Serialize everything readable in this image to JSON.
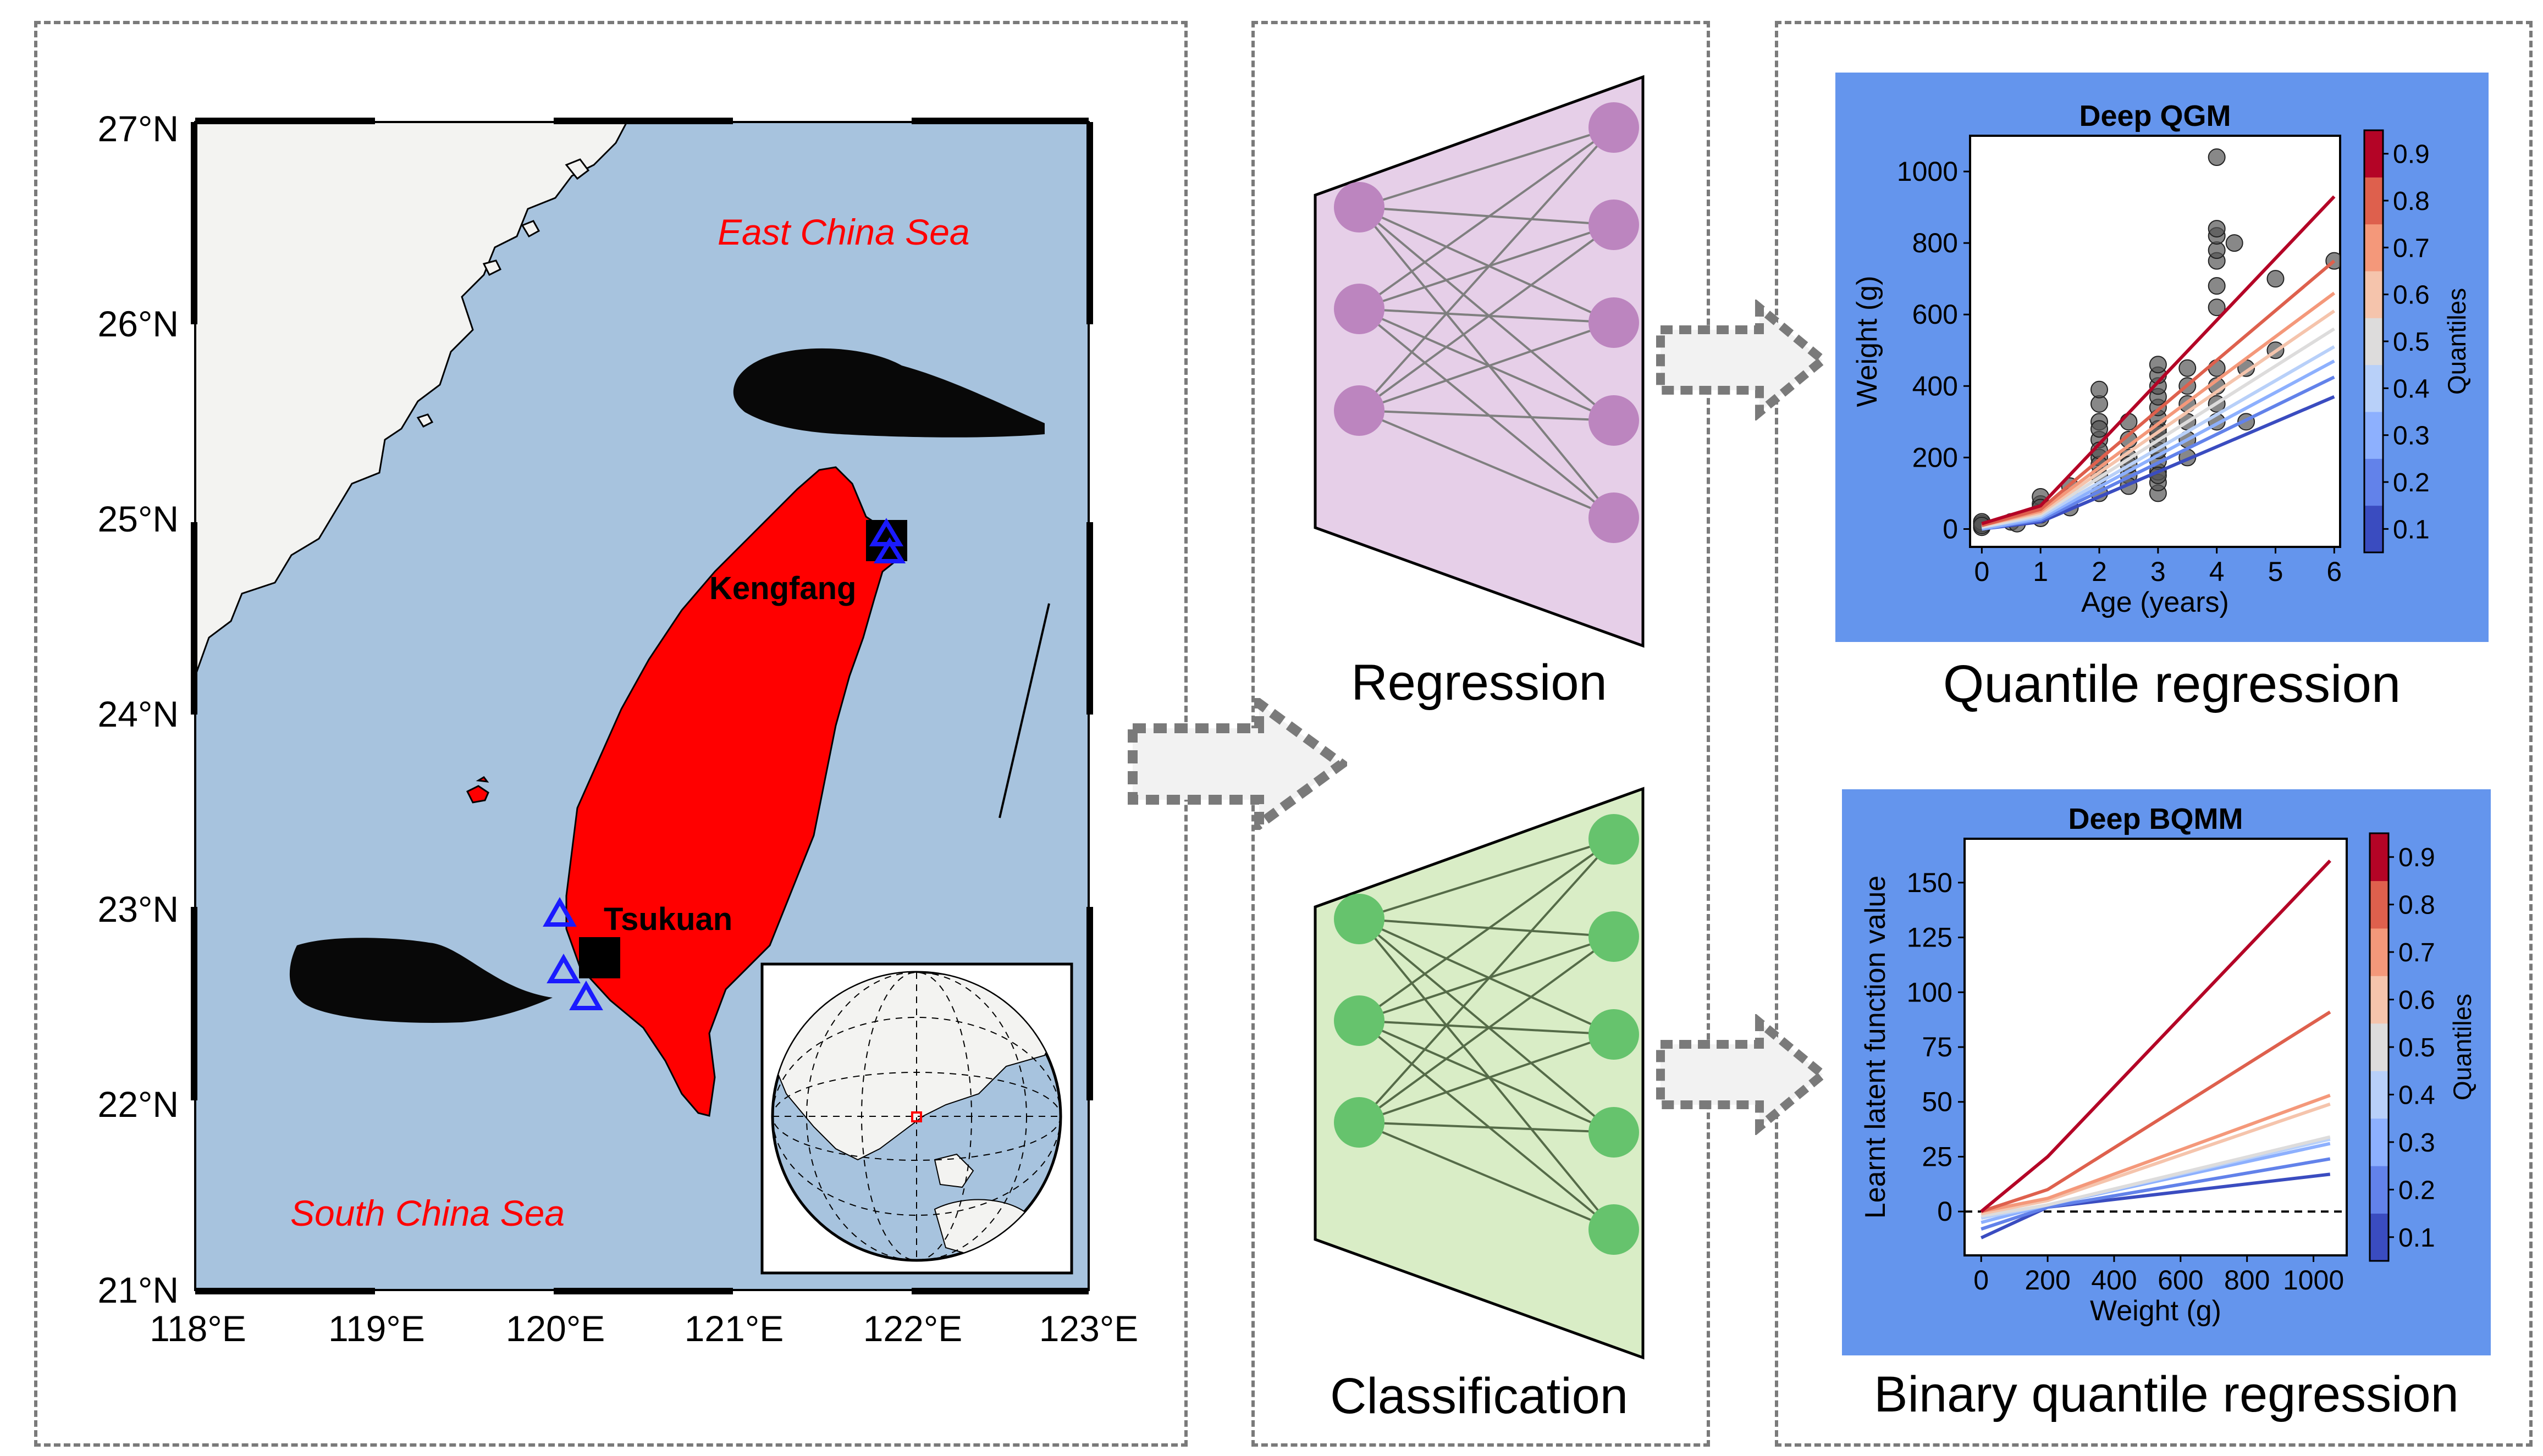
{
  "map": {
    "lat_labels": [
      "27°N",
      "26°N",
      "25°N",
      "24°N",
      "23°N",
      "22°N",
      "21°N"
    ],
    "lon_labels": [
      "118°E",
      "119°E",
      "120°E",
      "121°E",
      "122°E",
      "123°E"
    ],
    "sea_labels": {
      "east": "East China Sea",
      "south": "South China Sea"
    },
    "sites": [
      {
        "name": "Kengfang",
        "lon": 121.85,
        "lat": 24.92
      },
      {
        "name": "Tsukuan",
        "lon": 120.28,
        "lat": 22.72
      }
    ],
    "stations": [
      {
        "lon": 121.86,
        "lat": 24.85
      },
      {
        "lon": 121.9,
        "lat": 24.78
      },
      {
        "lon": 120.03,
        "lat": 22.96
      },
      {
        "lon": 120.04,
        "lat": 22.68
      },
      {
        "lon": 120.17,
        "lat": 22.54
      }
    ],
    "colors": {
      "sea": "#a7c3de",
      "land": "#f3f3f1",
      "taiwan": "#ff0000",
      "marker": "#1a1aff"
    }
  },
  "middle": {
    "regression_label": "Regression",
    "classification_label": "Classification"
  },
  "right": {
    "quantile_label": "Quantile regression",
    "binary_label": "Binary quantile regression"
  },
  "colors": {
    "panel_bg": "#6495ed",
    "nn_top_fill": "#e6cfe8",
    "nn_top_node": "#bc85bf",
    "nn_bottom_fill": "#d9edc6",
    "nn_bottom_node": "#66c36d"
  },
  "chart_data": [
    {
      "type": "scatter",
      "title": "Deep QGM",
      "xlabel": "Age (years)",
      "ylabel": "Weight (g)",
      "xlim": [
        -0.2,
        6.1
      ],
      "ylim": [
        -50,
        1100
      ],
      "xticks": [
        "0",
        "1",
        "2",
        "3",
        "4",
        "5",
        "6"
      ],
      "yticks": [
        "0",
        "200",
        "400",
        "600",
        "800",
        "1000"
      ],
      "colorbar": {
        "label": "Quantiles",
        "ticks": [
          "0.1",
          "0.2",
          "0.3",
          "0.4",
          "0.5",
          "0.6",
          "0.7",
          "0.8",
          "0.9"
        ]
      },
      "points": [
        [
          0,
          5
        ],
        [
          0,
          15
        ],
        [
          0,
          20
        ],
        [
          0,
          10
        ],
        [
          0.5,
          20
        ],
        [
          0.6,
          15
        ],
        [
          1,
          30
        ],
        [
          1,
          50
        ],
        [
          1,
          70
        ],
        [
          1,
          90
        ],
        [
          1,
          60
        ],
        [
          1,
          40
        ],
        [
          1.5,
          90
        ],
        [
          1.5,
          120
        ],
        [
          1.5,
          60
        ],
        [
          2,
          100
        ],
        [
          2,
          150
        ],
        [
          2,
          200
        ],
        [
          2,
          250
        ],
        [
          2,
          300
        ],
        [
          2,
          350
        ],
        [
          2,
          390
        ],
        [
          2,
          180
        ],
        [
          2,
          220
        ],
        [
          2,
          280
        ],
        [
          2.5,
          150
        ],
        [
          2.5,
          200
        ],
        [
          2.5,
          250
        ],
        [
          2.5,
          300
        ],
        [
          2.5,
          180
        ],
        [
          2.5,
          120
        ],
        [
          3,
          100
        ],
        [
          3,
          130
        ],
        [
          3,
          160
        ],
        [
          3,
          190
        ],
        [
          3,
          220
        ],
        [
          3,
          250
        ],
        [
          3,
          280
        ],
        [
          3,
          310
        ],
        [
          3,
          340
        ],
        [
          3,
          370
        ],
        [
          3,
          400
        ],
        [
          3,
          430
        ],
        [
          3,
          460
        ],
        [
          3,
          150
        ],
        [
          3,
          270
        ],
        [
          3.5,
          250
        ],
        [
          3.5,
          300
        ],
        [
          3.5,
          350
        ],
        [
          3.5,
          400
        ],
        [
          3.5,
          450
        ],
        [
          3.5,
          200
        ],
        [
          4,
          300
        ],
        [
          4,
          350
        ],
        [
          4,
          400
        ],
        [
          4,
          450
        ],
        [
          4,
          620
        ],
        [
          4,
          680
        ],
        [
          4,
          750
        ],
        [
          4,
          780
        ],
        [
          4,
          820
        ],
        [
          4,
          840
        ],
        [
          4,
          1040
        ],
        [
          4.3,
          800
        ],
        [
          4.5,
          450
        ],
        [
          4.5,
          300
        ],
        [
          5,
          500
        ],
        [
          5,
          700
        ],
        [
          6,
          750
        ]
      ],
      "series": [
        {
          "quantile": 0.1,
          "x": [
            0,
            1,
            6
          ],
          "y": [
            0,
            20,
            370
          ]
        },
        {
          "quantile": 0.2,
          "x": [
            0,
            1,
            6
          ],
          "y": [
            0,
            25,
            425
          ]
        },
        {
          "quantile": 0.3,
          "x": [
            0,
            1,
            6
          ],
          "y": [
            0,
            30,
            470
          ]
        },
        {
          "quantile": 0.4,
          "x": [
            0,
            1,
            6
          ],
          "y": [
            5,
            35,
            510
          ]
        },
        {
          "quantile": 0.5,
          "x": [
            0,
            1,
            6
          ],
          "y": [
            5,
            40,
            560
          ]
        },
        {
          "quantile": 0.6,
          "x": [
            0,
            1,
            6
          ],
          "y": [
            10,
            45,
            610
          ]
        },
        {
          "quantile": 0.7,
          "x": [
            0,
            1,
            6
          ],
          "y": [
            10,
            50,
            660
          ]
        },
        {
          "quantile": 0.8,
          "x": [
            0,
            1,
            6
          ],
          "y": [
            10,
            55,
            750
          ]
        },
        {
          "quantile": 0.9,
          "x": [
            0,
            1,
            6
          ],
          "y": [
            15,
            65,
            930
          ]
        }
      ]
    },
    {
      "type": "line",
      "title": "Deep BQMM",
      "xlabel": "Weight (g)",
      "ylabel": "Learnt latent function value",
      "xlim": [
        -50,
        1100
      ],
      "ylim": [
        -20,
        170
      ],
      "xticks": [
        "0",
        "200",
        "400",
        "600",
        "800",
        "1000"
      ],
      "yticks": [
        "0",
        "25",
        "50",
        "75",
        "100",
        "125",
        "150"
      ],
      "colorbar": {
        "label": "Quantiles",
        "ticks": [
          "0.1",
          "0.2",
          "0.3",
          "0.4",
          "0.5",
          "0.6",
          "0.7",
          "0.8",
          "0.9"
        ]
      },
      "series": [
        {
          "quantile": 0.1,
          "x": [
            0,
            200,
            1050
          ],
          "y": [
            -12,
            2,
            17
          ]
        },
        {
          "quantile": 0.2,
          "x": [
            0,
            200,
            1050
          ],
          "y": [
            -8,
            2,
            24
          ]
        },
        {
          "quantile": 0.3,
          "x": [
            0,
            200,
            1050
          ],
          "y": [
            -5,
            3,
            31
          ]
        },
        {
          "quantile": 0.4,
          "x": [
            0,
            200,
            1050
          ],
          "y": [
            -3,
            3,
            33
          ]
        },
        {
          "quantile": 0.5,
          "x": [
            0,
            200,
            1050
          ],
          "y": [
            -2,
            3,
            34
          ]
        },
        {
          "quantile": 0.6,
          "x": [
            0,
            200,
            1050
          ],
          "y": [
            -1,
            5,
            49
          ]
        },
        {
          "quantile": 0.7,
          "x": [
            0,
            200,
            1050
          ],
          "y": [
            0,
            6,
            53
          ]
        },
        {
          "quantile": 0.8,
          "x": [
            0,
            200,
            1050
          ],
          "y": [
            0,
            10,
            91
          ]
        },
        {
          "quantile": 0.9,
          "x": [
            0,
            200,
            1050
          ],
          "y": [
            0,
            25,
            160
          ]
        }
      ],
      "reference_line": {
        "y": 0,
        "style": "dashed"
      }
    }
  ]
}
